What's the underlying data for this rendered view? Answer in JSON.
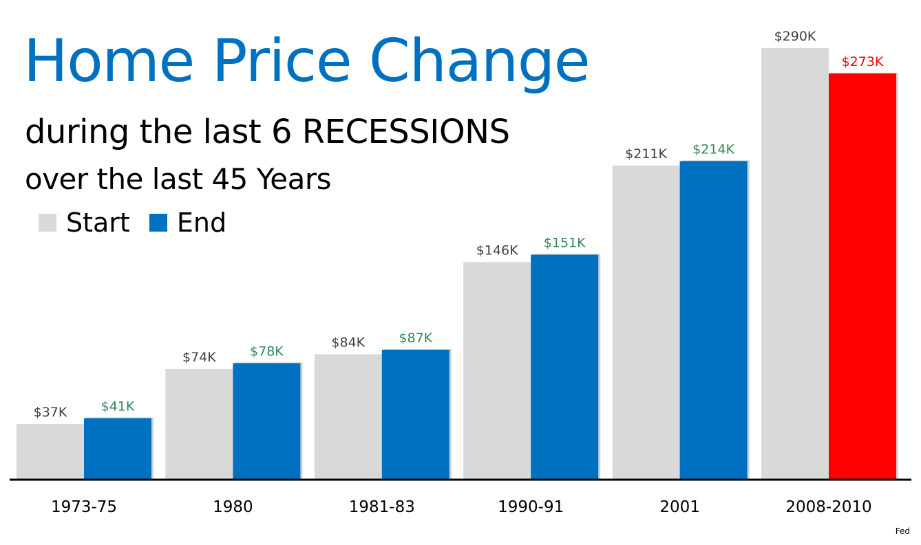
{
  "chart_data": {
    "type": "bar",
    "title": "Home Price Change",
    "subtitle": "during the last 6 RECESSIONS",
    "subtitle2": "over the last 45 Years",
    "categories": [
      "1973-75",
      "1980",
      "1981-83",
      "1990-91",
      "2001",
      "2008-2010"
    ],
    "series": [
      {
        "name": "Start",
        "values": [
          37,
          74,
          84,
          146,
          211,
          290
        ],
        "labels": [
          "$37K",
          "$74K",
          "$84K",
          "$146K",
          "$211K",
          "$290K"
        ],
        "color": "#d9d9d9",
        "label_color": "#404040"
      },
      {
        "name": "End",
        "values": [
          41,
          78,
          87,
          151,
          214,
          273
        ],
        "labels": [
          "$41K",
          "$78K",
          "$87K",
          "$151K",
          "$214K",
          "$273K"
        ],
        "color": "#0070c0",
        "label_color": "#2e8b57"
      }
    ],
    "highlight": {
      "category": "2008-2010",
      "series": "End",
      "color": "#ff0000",
      "label_color": "#ff0000"
    },
    "units": "$K",
    "ylim": [
      0,
      300
    ],
    "grid": false,
    "legend_position": "top-left"
  },
  "source": "Fed",
  "colors": {
    "title": "#0070c0",
    "axis": "#000000"
  }
}
